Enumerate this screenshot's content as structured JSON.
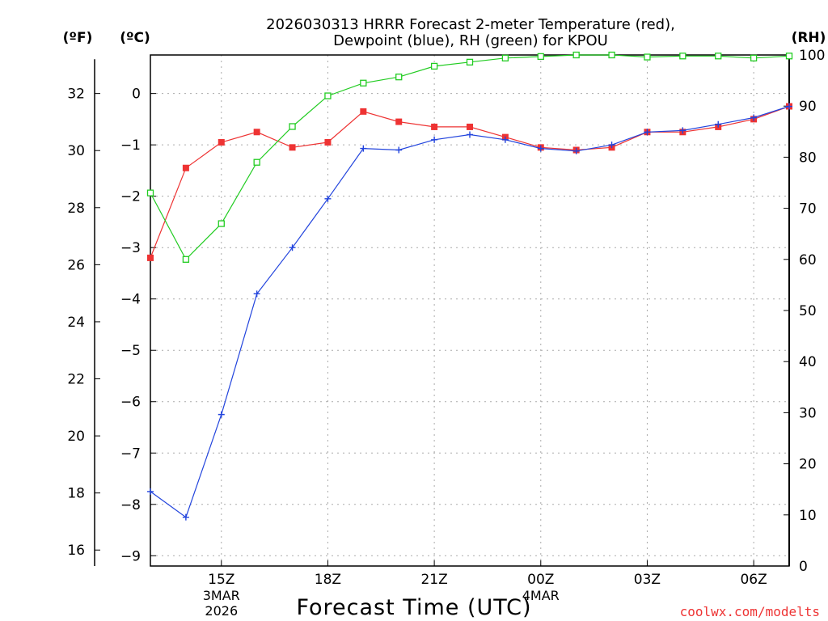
{
  "chart_data": {
    "type": "line",
    "title_line1": "2026030313 HRRR Forecast 2-meter Temperature (red),",
    "title_line2": "Dewpoint (blue), RH (green) for KPOU",
    "xlabel": "Forecast Time (UTC)",
    "units": {
      "fahrenheit": "(ºF)",
      "celsius": "(ºC)",
      "rh": "(RH)"
    },
    "x_hours": [
      13,
      14,
      15,
      16,
      17,
      18,
      19,
      20,
      21,
      22,
      23,
      24,
      25,
      26,
      27,
      28,
      29,
      30,
      31
    ],
    "x_range": [
      13,
      31
    ],
    "x_ticks": [
      {
        "hour": 15,
        "label": "15Z",
        "sub1": "3MAR",
        "sub2": "2026"
      },
      {
        "hour": 18,
        "label": "18Z",
        "sub1": "",
        "sub2": ""
      },
      {
        "hour": 21,
        "label": "21Z",
        "sub1": "",
        "sub2": ""
      },
      {
        "hour": 24,
        "label": "00Z",
        "sub1": "4MAR",
        "sub2": ""
      },
      {
        "hour": 27,
        "label": "03Z",
        "sub1": "",
        "sub2": ""
      },
      {
        "hour": 30,
        "label": "06Z",
        "sub1": "",
        "sub2": ""
      }
    ],
    "celsius_range": [
      -9.2,
      0.75
    ],
    "celsius_ticks": [
      "0",
      "−1",
      "−2",
      "−3",
      "−4",
      "−5",
      "−6",
      "−7",
      "−8",
      "−9"
    ],
    "fahrenheit_ticks": [
      "32",
      "30",
      "28",
      "26",
      "24",
      "22",
      "20",
      "18",
      "16"
    ],
    "rh_range": [
      0,
      100
    ],
    "rh_ticks": [
      "100",
      "90",
      "80",
      "70",
      "60",
      "50",
      "40",
      "30",
      "20",
      "10",
      "0"
    ],
    "series": [
      {
        "name": "Temperature",
        "color": "#ee3333",
        "marker": "filled-square",
        "values": [
          -3.2,
          -1.45,
          -0.95,
          -0.75,
          -1.05,
          -0.95,
          -0.35,
          -0.55,
          -0.65,
          -0.65,
          -0.85,
          -1.05,
          -1.1,
          -1.05,
          -0.75,
          -0.75,
          -0.65,
          -0.5,
          -0.25
        ]
      },
      {
        "name": "Dewpoint",
        "color": "#2244dd",
        "marker": "plus",
        "values": [
          -7.75,
          -8.25,
          -6.25,
          -3.9,
          -3.0,
          -2.05,
          -1.07,
          -1.1,
          -0.9,
          -0.8,
          -0.9,
          -1.07,
          -1.12,
          -1.0,
          -0.75,
          -0.72,
          -0.6,
          -0.47,
          -0.25
        ]
      },
      {
        "name": "RH",
        "color": "#22cc22",
        "marker": "open-square",
        "axis": "rh",
        "values": [
          73,
          60,
          67,
          79,
          86,
          92,
          94.5,
          95.7,
          97.8,
          98.6,
          99.4,
          99.7,
          100,
          100,
          99.6,
          99.8,
          99.8,
          99.4,
          99.8
        ]
      }
    ]
  },
  "watermark": "coolwx.com/modelts"
}
